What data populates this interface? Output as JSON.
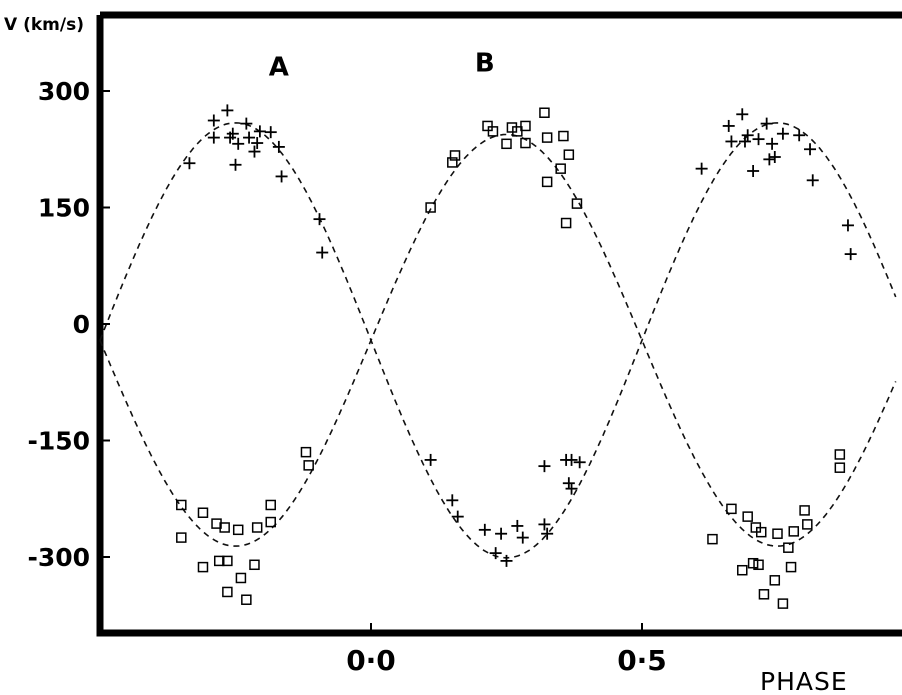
{
  "chart_data": {
    "type": "scatter",
    "title": "",
    "ylabel": "V (km/s)",
    "xlabel": "PHASE",
    "xlim": [
      -0.5,
      0.97
    ],
    "ylim": [
      -400,
      410
    ],
    "yticks": [
      300,
      150,
      0,
      -150,
      -300
    ],
    "ytick_labels": [
      "300",
      "150",
      "0",
      "-150",
      "-300"
    ],
    "xticks": [
      0.0,
      0.5
    ],
    "xtick_labels": [
      "0·0",
      "0·5"
    ],
    "grid": false,
    "legend": "none",
    "curve_labels": [
      {
        "text": "A",
        "x": -0.17,
        "y": 320
      },
      {
        "text": "B",
        "x": 0.21,
        "y": 325
      }
    ],
    "series": [
      {
        "name": "A",
        "marker": "plus",
        "fit": {
          "gamma": -21,
          "K": 265,
          "phase_of_max": 0.25
        },
        "points": [
          [
            -0.335,
            207
          ],
          [
            -0.29,
            240
          ],
          [
            -0.29,
            262
          ],
          [
            -0.265,
            275
          ],
          [
            -0.26,
            240
          ],
          [
            -0.255,
            245
          ],
          [
            -0.25,
            205
          ],
          [
            -0.245,
            232
          ],
          [
            -0.23,
            258
          ],
          [
            -0.225,
            240
          ],
          [
            -0.215,
            222
          ],
          [
            -0.21,
            233
          ],
          [
            -0.205,
            248
          ],
          [
            -0.185,
            247
          ],
          [
            -0.17,
            228
          ],
          [
            -0.165,
            190
          ],
          [
            -0.095,
            135
          ],
          [
            -0.09,
            92
          ],
          [
            0.11,
            -175
          ],
          [
            0.15,
            -227
          ],
          [
            0.16,
            -248
          ],
          [
            0.21,
            -265
          ],
          [
            0.23,
            -295
          ],
          [
            0.24,
            -270
          ],
          [
            0.25,
            -305
          ],
          [
            0.27,
            -260
          ],
          [
            0.28,
            -275
          ],
          [
            0.32,
            -258
          ],
          [
            0.325,
            -270
          ],
          [
            0.32,
            -183
          ],
          [
            0.36,
            -175
          ],
          [
            0.365,
            -205
          ],
          [
            0.37,
            -175
          ],
          [
            0.37,
            -212
          ],
          [
            0.385,
            -178
          ],
          [
            0.61,
            200
          ],
          [
            0.66,
            255
          ],
          [
            0.665,
            235
          ],
          [
            0.685,
            270
          ],
          [
            0.69,
            235
          ],
          [
            0.695,
            243
          ],
          [
            0.705,
            197
          ],
          [
            0.715,
            238
          ],
          [
            0.73,
            258
          ],
          [
            0.735,
            212
          ],
          [
            0.74,
            232
          ],
          [
            0.745,
            215
          ],
          [
            0.76,
            245
          ],
          [
            0.79,
            243
          ],
          [
            0.81,
            225
          ],
          [
            0.815,
            185
          ],
          [
            0.88,
            127
          ],
          [
            0.885,
            90
          ]
        ]
      },
      {
        "name": "B",
        "marker": "square",
        "fit": {
          "gamma": -21,
          "K": 280,
          "phase_of_max": 0.75
        },
        "points": [
          [
            -0.35,
            -233
          ],
          [
            -0.35,
            -275
          ],
          [
            -0.31,
            -243
          ],
          [
            -0.31,
            -313
          ],
          [
            -0.285,
            -257
          ],
          [
            -0.28,
            -305
          ],
          [
            -0.27,
            -262
          ],
          [
            -0.265,
            -305
          ],
          [
            -0.265,
            -345
          ],
          [
            -0.245,
            -265
          ],
          [
            -0.24,
            -327
          ],
          [
            -0.23,
            -355
          ],
          [
            -0.215,
            -310
          ],
          [
            -0.21,
            -262
          ],
          [
            -0.185,
            -233
          ],
          [
            -0.185,
            -255
          ],
          [
            -0.12,
            -165
          ],
          [
            -0.115,
            -182
          ],
          [
            0.11,
            150
          ],
          [
            0.15,
            208
          ],
          [
            0.155,
            217
          ],
          [
            0.215,
            255
          ],
          [
            0.225,
            248
          ],
          [
            0.25,
            232
          ],
          [
            0.26,
            253
          ],
          [
            0.27,
            248
          ],
          [
            0.285,
            233
          ],
          [
            0.285,
            255
          ],
          [
            0.32,
            272
          ],
          [
            0.325,
            240
          ],
          [
            0.325,
            183
          ],
          [
            0.35,
            200
          ],
          [
            0.355,
            242
          ],
          [
            0.36,
            130
          ],
          [
            0.365,
            218
          ],
          [
            0.38,
            155
          ],
          [
            0.63,
            -277
          ],
          [
            0.665,
            -238
          ],
          [
            0.685,
            -317
          ],
          [
            0.695,
            -248
          ],
          [
            0.705,
            -308
          ],
          [
            0.71,
            -262
          ],
          [
            0.715,
            -310
          ],
          [
            0.72,
            -268
          ],
          [
            0.725,
            -348
          ],
          [
            0.745,
            -330
          ],
          [
            0.75,
            -270
          ],
          [
            0.76,
            -360
          ],
          [
            0.77,
            -288
          ],
          [
            0.775,
            -313
          ],
          [
            0.78,
            -267
          ],
          [
            0.8,
            -240
          ],
          [
            0.805,
            -258
          ],
          [
            0.865,
            -168
          ],
          [
            0.865,
            -185
          ]
        ]
      }
    ]
  }
}
